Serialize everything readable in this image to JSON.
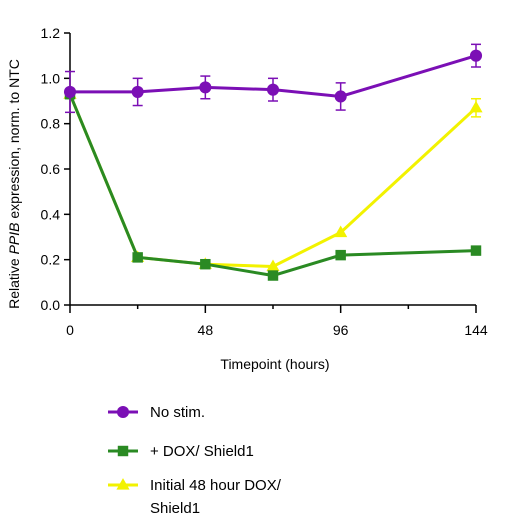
{
  "chart_data": {
    "type": "line",
    "xlabel": "Timepoint (hours)",
    "ylabel": {
      "prefix": "Relative ",
      "italic": "PPIB",
      "suffix": " expression, norm. to NTC"
    },
    "xlim": [
      0,
      144
    ],
    "ylim": [
      0,
      1.2
    ],
    "x_ticks": [
      0,
      48,
      96,
      144
    ],
    "x_minor_ticks": [
      24,
      72,
      120
    ],
    "x_tick_labels": [
      "0",
      "48",
      "96",
      "144"
    ],
    "y_ticks": [
      0,
      0.2,
      0.4,
      0.6,
      0.8,
      1.0,
      1.2
    ],
    "y_tick_labels": [
      "0.0",
      "0.2",
      "0.4",
      "0.6",
      "0.8",
      "1.0",
      "1.2"
    ],
    "grid": false,
    "legend_position": "bottom",
    "series": [
      {
        "name": "No stim.",
        "color": "#7B0FB5",
        "marker": "circle",
        "x": [
          0,
          24,
          48,
          72,
          96,
          144
        ],
        "y": [
          0.94,
          0.94,
          0.96,
          0.95,
          0.92,
          1.1
        ],
        "err": [
          0.09,
          0.06,
          0.05,
          0.05,
          0.06,
          0.05
        ]
      },
      {
        "name": "+ DOX/ Shield1",
        "color": "#2A8A23",
        "marker": "square",
        "x": [
          0,
          24,
          48,
          72,
          96,
          144
        ],
        "y": [
          0.93,
          0.21,
          0.18,
          0.13,
          0.22,
          0.24
        ],
        "err": [
          0,
          0,
          0,
          0,
          0,
          0
        ]
      },
      {
        "name": "Initial 48 hour DOX/ Shield1",
        "legend_lines": [
          "Initial 48 hour DOX/",
          "Shield1"
        ],
        "color": "#F2F200",
        "marker": "triangle",
        "x": [
          0,
          24,
          48,
          72,
          96,
          144
        ],
        "y": [
          0.93,
          0.21,
          0.18,
          0.17,
          0.32,
          0.87
        ],
        "err": [
          0,
          0,
          0,
          0,
          0,
          0.04
        ]
      }
    ]
  }
}
